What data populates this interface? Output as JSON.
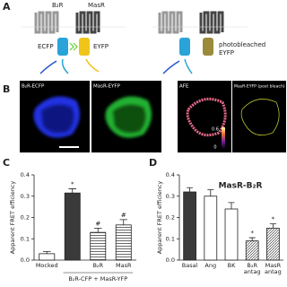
{
  "panel_a": {
    "letter": "A",
    "receptor_1": "B₂R",
    "receptor_2": "MasR",
    "donor": "ECFP",
    "acceptor": "EYFP",
    "bleached_line_1": "photobleached",
    "bleached_line_2": "EYFP"
  },
  "panel_b": {
    "letter": "B",
    "images": [
      "B₂R-ECFP",
      "MasR-EYFP",
      "AFE",
      "MasR-EYFP (post bleach)"
    ],
    "colorbar_max": "0.6",
    "colorbar_min": "0"
  },
  "chart_data": [
    {
      "type": "bar",
      "letter": "C",
      "ylabel": "Apparent FRET efficiency",
      "categories": [
        "Mocked",
        null,
        "B₂R",
        "MasR"
      ],
      "group_label": "B₂R-CFP + MasR-YFP",
      "values": [
        0.03,
        0.315,
        0.13,
        0.165
      ],
      "errors": [
        0.01,
        0.02,
        0.02,
        0.025
      ],
      "annotations": [
        null,
        "*",
        "#",
        "#"
      ],
      "colors": [
        "#ffffff",
        "#3a3a3a",
        "#ffffff",
        "#ffffff"
      ],
      "hatch": [
        null,
        null,
        "horizontal",
        "horizontal"
      ],
      "ylim": [
        0,
        0.4
      ],
      "yticks": [
        {
          "value": 0,
          "label": "0.0"
        },
        0.1,
        0.2,
        0.3,
        0.4
      ]
    },
    {
      "type": "bar",
      "letter": "D",
      "title": "MasR-B₂R",
      "ylabel": "Apparent FRET efficiency",
      "categories": [
        "Basal",
        "Ang",
        "BK",
        "B₂R\nantag",
        "MasR\nantag"
      ],
      "values": [
        0.32,
        0.3,
        0.24,
        0.09,
        0.15
      ],
      "errors": [
        0.02,
        0.03,
        0.03,
        0.015,
        0.02
      ],
      "annotations": [
        null,
        null,
        null,
        "*",
        "*"
      ],
      "colors": [
        "#3a3a3a",
        "#ffffff",
        "#ffffff",
        "#ffffff",
        "#ffffff"
      ],
      "hatch": [
        null,
        null,
        null,
        "diagonal",
        "diagonal"
      ],
      "ylim": [
        0,
        0.4
      ],
      "yticks": [
        {
          "value": 0,
          "label": "0.0"
        },
        0.1,
        0.2,
        0.3,
        0.4
      ]
    }
  ]
}
